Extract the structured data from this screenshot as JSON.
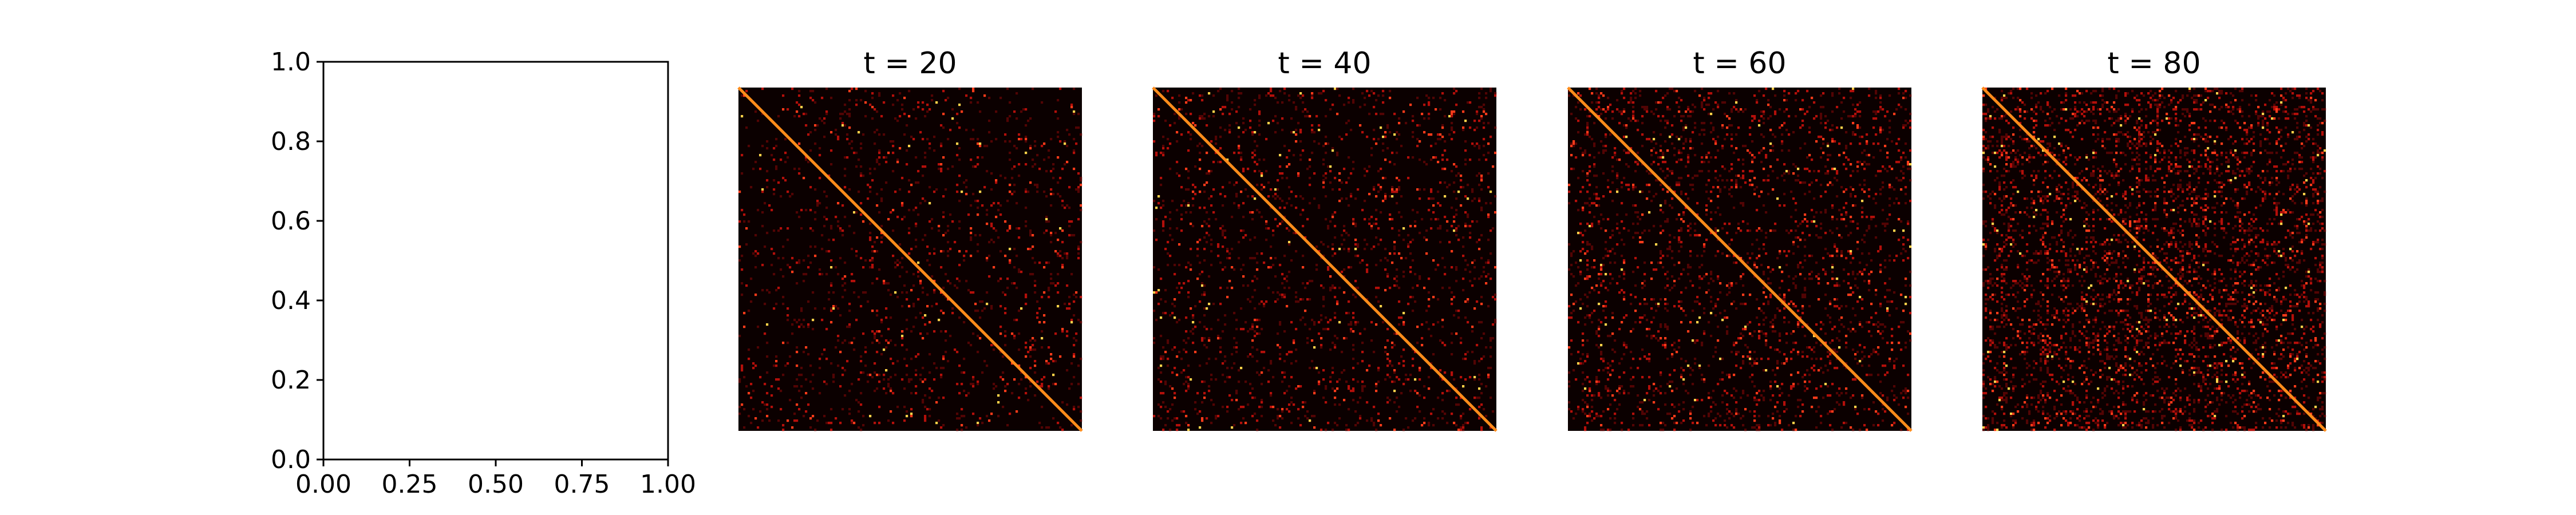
{
  "chart_data": [
    {
      "type": "line",
      "series": [],
      "xlim": [
        0.0,
        1.0
      ],
      "ylim": [
        0.0,
        1.0
      ],
      "xticks": [
        "0.00",
        "0.25",
        "0.50",
        "0.75",
        "1.00"
      ],
      "yticks": [
        "0.0",
        "0.2",
        "0.4",
        "0.6",
        "0.8",
        "1.0"
      ],
      "grid": false,
      "note_empty_axes": true
    },
    {
      "type": "heatmap",
      "title": "t = 20",
      "colormap": "hot",
      "diagonal": true,
      "offdiag_density": 0.05,
      "seed": 20
    },
    {
      "type": "heatmap",
      "title": "t = 40",
      "colormap": "hot",
      "diagonal": true,
      "offdiag_density": 0.06,
      "seed": 40
    },
    {
      "type": "heatmap",
      "title": "t = 60",
      "colormap": "hot",
      "diagonal": true,
      "offdiag_density": 0.08,
      "seed": 60
    },
    {
      "type": "heatmap",
      "title": "t = 80",
      "colormap": "hot",
      "diagonal": true,
      "offdiag_density": 0.14,
      "seed": 80
    }
  ],
  "colors": {
    "background": "#ffffff",
    "heatmap_base": "#0b0000",
    "diagonal": "#ff8c1a",
    "axis": "#000000"
  }
}
